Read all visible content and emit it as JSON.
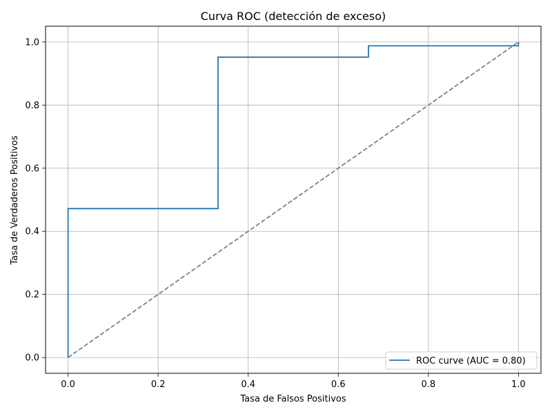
{
  "chart_data": {
    "type": "line",
    "title": "Curva ROC (detección de exceso)",
    "xlabel": "Tasa de Falsos Positivos",
    "ylabel": "Tasa de Verdaderos Positivos",
    "xlim": [
      -0.05,
      1.05
    ],
    "ylim": [
      -0.05,
      1.05
    ],
    "xticks": [
      0.0,
      0.2,
      0.4,
      0.6,
      0.8,
      1.0
    ],
    "yticks": [
      0.0,
      0.2,
      0.4,
      0.6,
      0.8,
      1.0
    ],
    "xtick_labels": [
      "0.0",
      "0.2",
      "0.4",
      "0.6",
      "0.8",
      "1.0"
    ],
    "ytick_labels": [
      "0.0",
      "0.2",
      "0.4",
      "0.6",
      "0.8",
      "1.0"
    ],
    "grid": true,
    "legend_position": "lower-right",
    "series": [
      {
        "name": "ROC curve (AUC = 0.80)",
        "color": "#1f77b4",
        "style": "solid",
        "x": [
          0.0,
          0.0,
          0.333,
          0.333,
          0.667,
          0.667,
          1.0,
          1.0
        ],
        "y": [
          0.0,
          0.472,
          0.472,
          0.952,
          0.952,
          0.988,
          0.988,
          1.0
        ]
      },
      {
        "color": "#808080",
        "style": "dashed",
        "x": [
          0.0,
          1.0
        ],
        "y": [
          0.0,
          1.0
        ]
      }
    ]
  }
}
